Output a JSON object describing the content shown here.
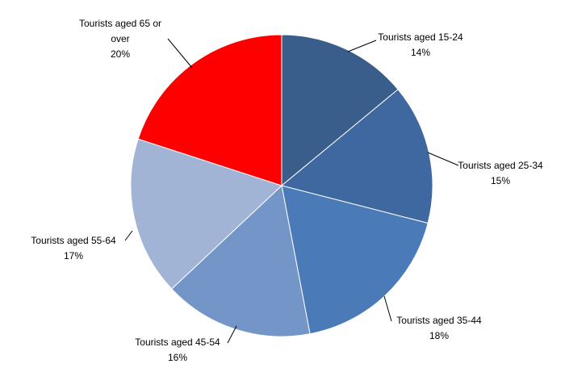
{
  "chart_data": {
    "type": "pie",
    "title": "",
    "slices": [
      {
        "name_lines": [
          "Tourists aged 15-24"
        ],
        "value": 14,
        "value_label": "14%",
        "color": "#3A5E8C"
      },
      {
        "name_lines": [
          "Tourists aged 25-34"
        ],
        "value": 15,
        "value_label": "15%",
        "color": "#4068A0"
      },
      {
        "name_lines": [
          "Tourists aged 35-44"
        ],
        "value": 18,
        "value_label": "18%",
        "color": "#4A7AB7"
      },
      {
        "name_lines": [
          "Tourists aged 45-54"
        ],
        "value": 16,
        "value_label": "16%",
        "color": "#7395C8"
      },
      {
        "name_lines": [
          "Tourists aged 55-64"
        ],
        "value": 17,
        "value_label": "17%",
        "color": "#A1B4D6"
      },
      {
        "name_lines": [
          "Tourists aged 65 or",
          "over"
        ],
        "value": 20,
        "value_label": "20%",
        "color": "#FF0000"
      }
    ],
    "start_angle_deg": 0,
    "direction": "clockwise",
    "slice_border_color": "#FFFFFF",
    "label_style": "outside-with-leader-lines"
  }
}
